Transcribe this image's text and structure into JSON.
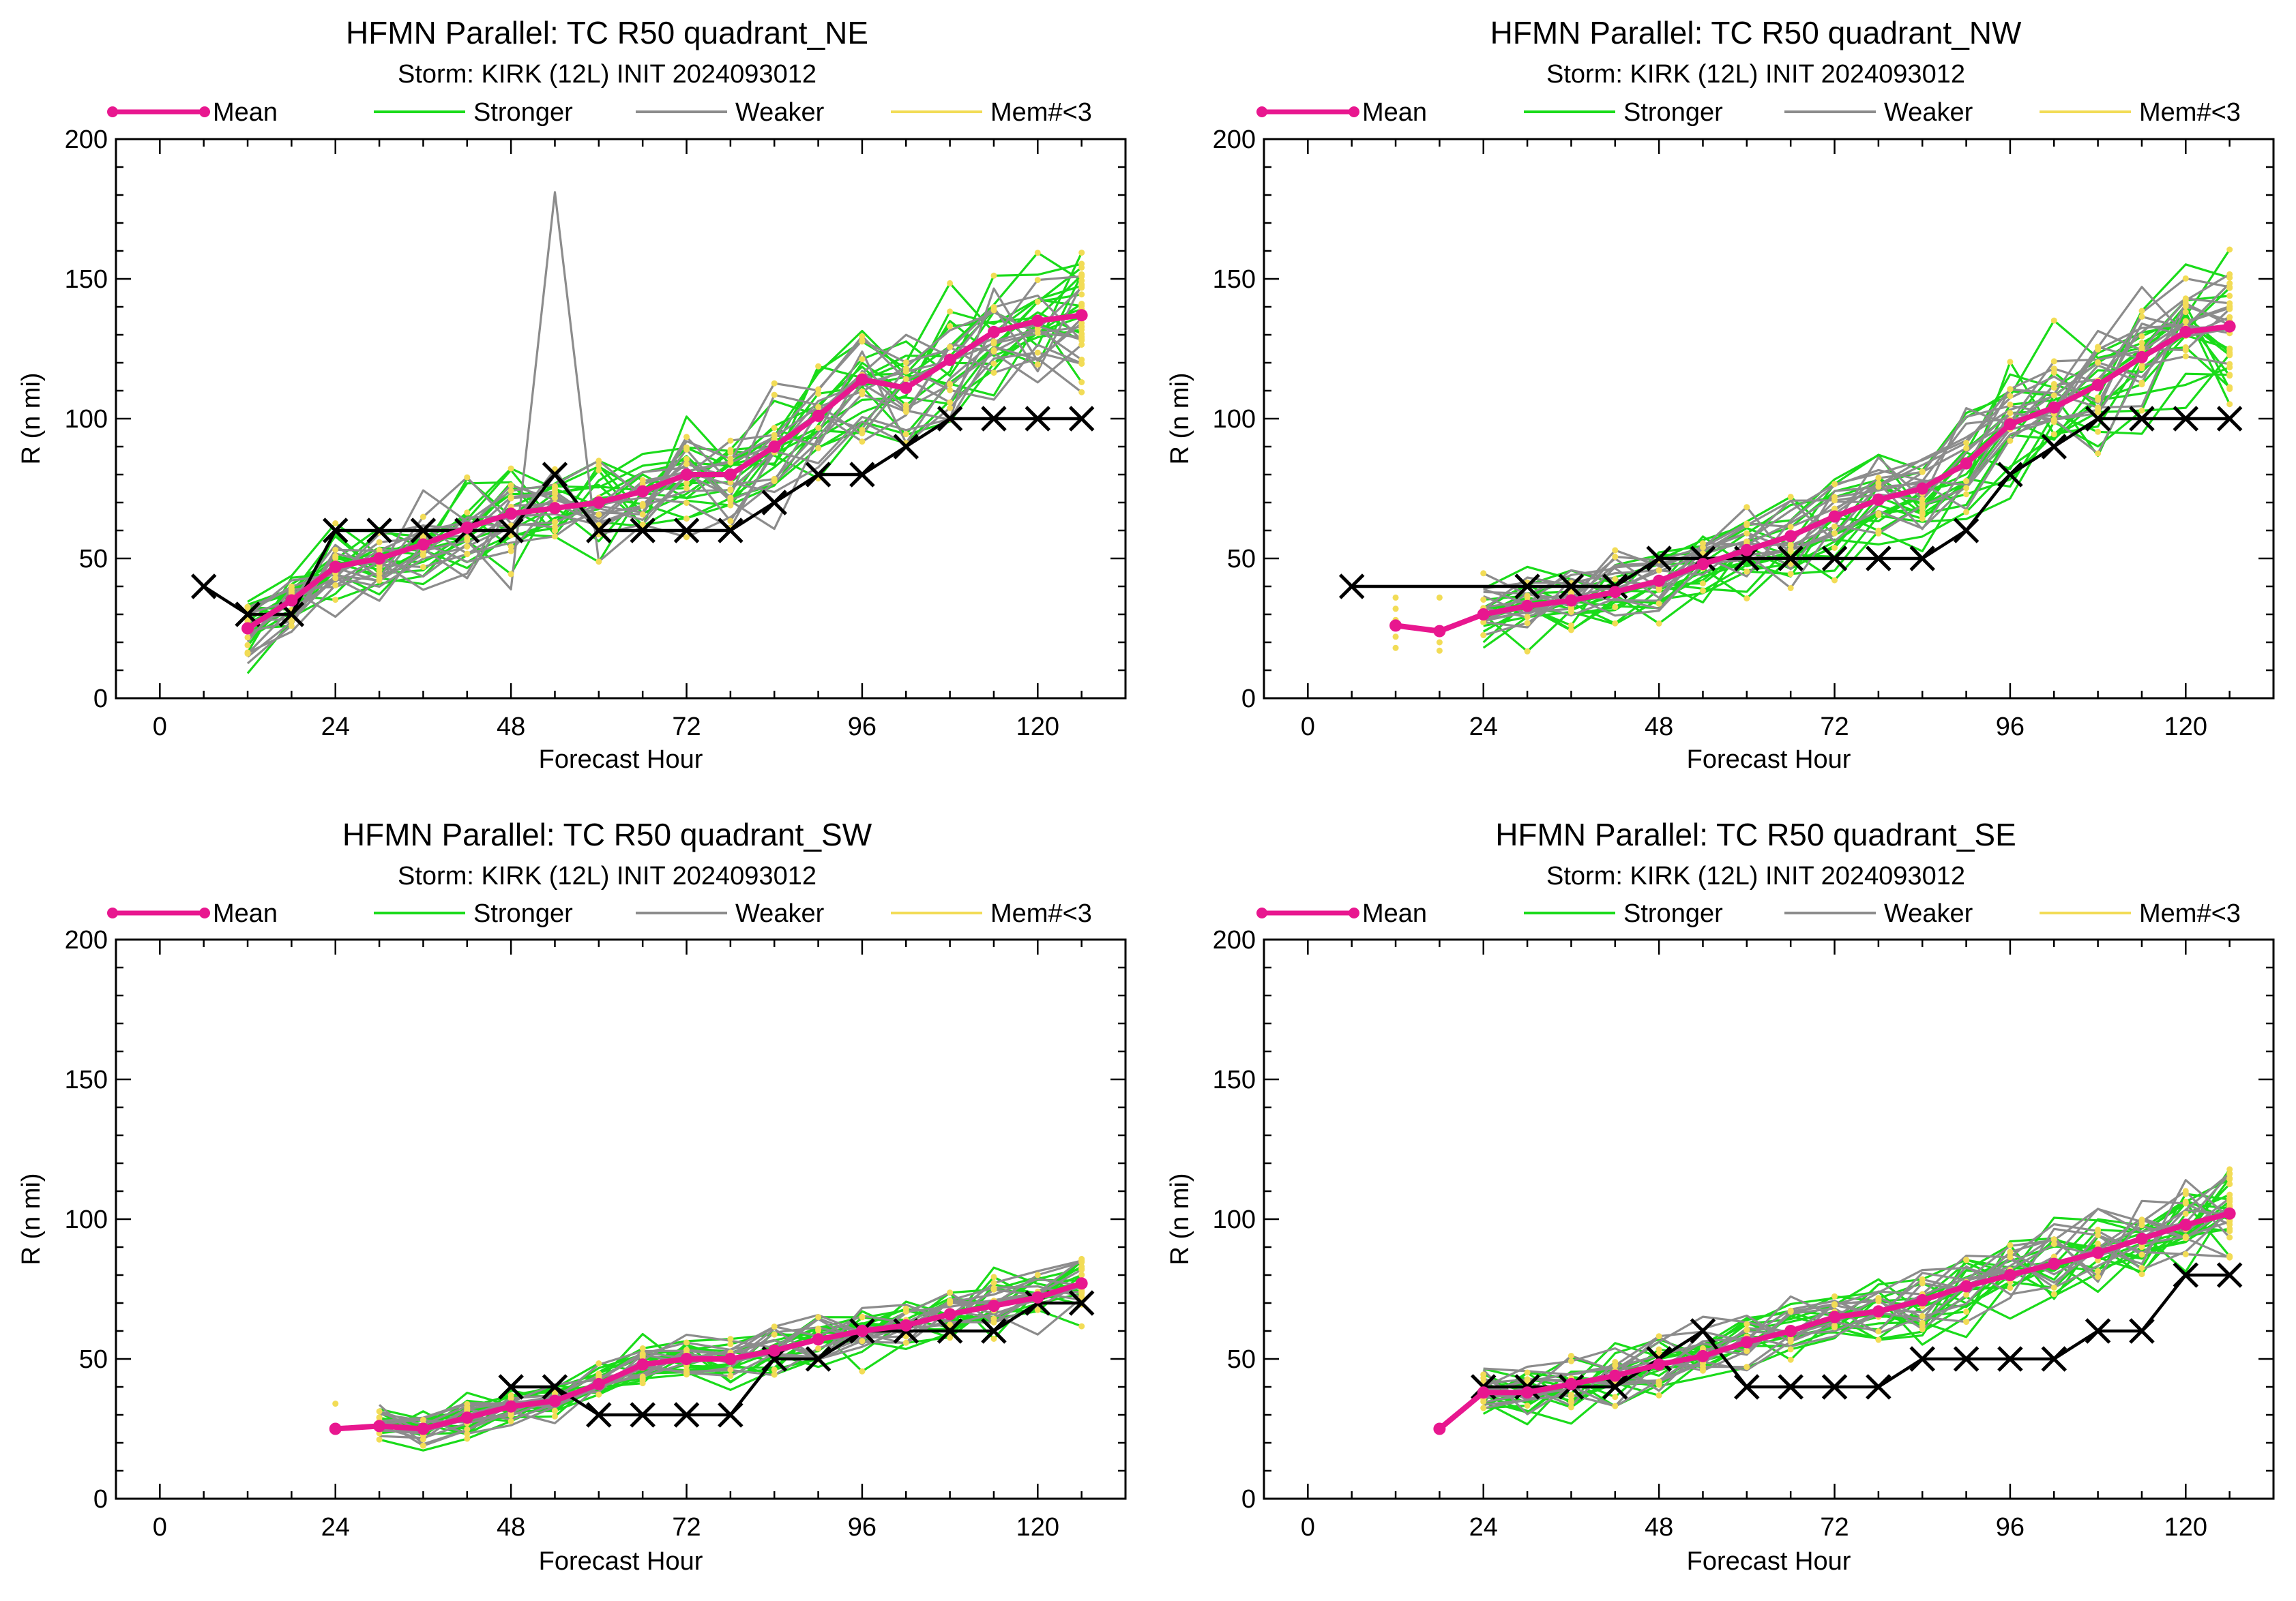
{
  "figure": {
    "background": "#ffffff"
  },
  "colors": {
    "mean": "#e8178f",
    "stronger": "#1adb1a",
    "weaker": "#8c8c8c",
    "mem_lt3": "#f2dc56",
    "best_track": "#000000"
  },
  "legend": {
    "mean": "Mean",
    "stronger": "Stronger",
    "weaker": "Weaker",
    "mem_lt3": "Mem#<3"
  },
  "chart_data": [
    {
      "type": "line",
      "position": "top-left",
      "title": "HFMN Parallel: TC  R50 quadrant_NE",
      "subtitle": "Storm: KIRK (12L) INIT 2024093012",
      "xlabel": "Forecast Hour",
      "ylabel": "R (n mi)",
      "xlim": [
        -6,
        132
      ],
      "ylim": [
        0,
        200
      ],
      "xticks": [
        0,
        24,
        48,
        72,
        96,
        120
      ],
      "yticks": [
        0,
        50,
        100,
        150,
        200
      ],
      "x_minor_step": 6,
      "y_minor_step": 10,
      "mean": {
        "x": [
          12,
          18,
          24,
          30,
          36,
          42,
          48,
          54,
          60,
          66,
          72,
          78,
          84,
          90,
          96,
          102,
          108,
          114,
          120,
          126
        ],
        "y": [
          25,
          35,
          47,
          50,
          55,
          61,
          66,
          68,
          70,
          74,
          80,
          80,
          90,
          101,
          114,
          111,
          121,
          131,
          135,
          137
        ]
      },
      "best_track": {
        "x": [
          6,
          12,
          18,
          24,
          30,
          36,
          42,
          48,
          54,
          60,
          66,
          72,
          78,
          84,
          90,
          96,
          102,
          108,
          114,
          120,
          126
        ],
        "y": [
          40,
          30,
          30,
          60,
          60,
          60,
          60,
          60,
          80,
          60,
          60,
          60,
          60,
          70,
          80,
          80,
          90,
          100,
          100,
          100,
          100
        ]
      },
      "members": {
        "x_start": 12,
        "x_end": 126,
        "n_stronger": 16,
        "n_weaker": 14,
        "spread": 16,
        "spike": {
          "x": 54,
          "y": 181
        }
      }
    },
    {
      "type": "line",
      "position": "top-right",
      "title": "HFMN Parallel: TC  R50 quadrant_NW",
      "subtitle": "Storm: KIRK (12L) INIT 2024093012",
      "xlabel": "Forecast Hour",
      "ylabel": "R (n mi)",
      "xlim": [
        -6,
        132
      ],
      "ylim": [
        0,
        200
      ],
      "xticks": [
        0,
        24,
        48,
        72,
        96,
        120
      ],
      "yticks": [
        0,
        50,
        100,
        150,
        200
      ],
      "x_minor_step": 6,
      "y_minor_step": 10,
      "mean": {
        "x": [
          12,
          18,
          24,
          30,
          36,
          42,
          48,
          54,
          60,
          66,
          72,
          78,
          84,
          90,
          96,
          102,
          108,
          114,
          120,
          126
        ],
        "y": [
          26,
          24,
          30,
          33,
          35,
          38,
          42,
          48,
          53,
          58,
          65,
          71,
          75,
          84,
          98,
          104,
          112,
          122,
          131,
          133
        ]
      },
      "best_track": {
        "x": [
          6,
          30,
          36,
          42,
          48,
          54,
          60,
          66,
          72,
          78,
          84,
          90,
          96,
          102,
          108,
          114,
          120,
          126
        ],
        "y": [
          40,
          40,
          40,
          40,
          50,
          50,
          50,
          50,
          50,
          50,
          50,
          60,
          80,
          90,
          100,
          100,
          100,
          100
        ]
      },
      "members": {
        "x_start": 24,
        "x_end": 126,
        "n_stronger": 16,
        "n_weaker": 14,
        "spread": 14,
        "stray_points": [
          [
            12,
            36
          ],
          [
            12,
            32
          ],
          [
            12,
            28
          ],
          [
            12,
            22
          ],
          [
            12,
            18
          ],
          [
            18,
            36
          ],
          [
            18,
            20
          ],
          [
            18,
            17
          ]
        ]
      }
    },
    {
      "type": "line",
      "position": "bottom-left",
      "title": "HFMN Parallel: TC  R50 quadrant_SW",
      "subtitle": "Storm: KIRK (12L) INIT 2024093012",
      "xlabel": "Forecast Hour",
      "ylabel": "R (n mi)",
      "xlim": [
        -6,
        132
      ],
      "ylim": [
        0,
        200
      ],
      "xticks": [
        0,
        24,
        48,
        72,
        96,
        120
      ],
      "yticks": [
        0,
        50,
        100,
        150,
        200
      ],
      "x_minor_step": 6,
      "y_minor_step": 10,
      "mean": {
        "x": [
          24,
          30,
          36,
          42,
          48,
          54,
          60,
          66,
          72,
          78,
          84,
          90,
          96,
          102,
          108,
          114,
          120,
          126
        ],
        "y": [
          25,
          26,
          25,
          29,
          33,
          35,
          41,
          48,
          50,
          50,
          53,
          57,
          60,
          62,
          66,
          69,
          72,
          77
        ]
      },
      "best_track": {
        "x": [
          48,
          54,
          60,
          66,
          72,
          78,
          84,
          90,
          96,
          102,
          108,
          114,
          120,
          126
        ],
        "y": [
          40,
          40,
          30,
          30,
          30,
          30,
          50,
          50,
          60,
          60,
          60,
          60,
          70,
          70
        ]
      },
      "members": {
        "x_start": 30,
        "x_end": 126,
        "n_stronger": 16,
        "n_weaker": 12,
        "spread": 8,
        "stray_points": [
          [
            24,
            34
          ]
        ]
      }
    },
    {
      "type": "line",
      "position": "bottom-right",
      "title": "HFMN Parallel: TC  R50 quadrant_SE",
      "subtitle": "Storm: KIRK (12L) INIT 2024093012",
      "xlabel": "Forecast Hour",
      "ylabel": "R (n mi)",
      "xlim": [
        -6,
        132
      ],
      "ylim": [
        0,
        200
      ],
      "xticks": [
        0,
        24,
        48,
        72,
        96,
        120
      ],
      "yticks": [
        0,
        50,
        100,
        150,
        200
      ],
      "x_minor_step": 6,
      "y_minor_step": 10,
      "mean": {
        "x": [
          18,
          24,
          30,
          36,
          42,
          48,
          54,
          60,
          66,
          72,
          78,
          84,
          90,
          96,
          102,
          108,
          114,
          120,
          126
        ],
        "y": [
          25,
          38,
          38,
          41,
          44,
          48,
          51,
          56,
          60,
          65,
          67,
          71,
          76,
          80,
          84,
          88,
          93,
          98,
          102
        ]
      },
      "best_track": {
        "x": [
          24,
          30,
          36,
          42,
          48,
          54,
          60,
          66,
          72,
          78,
          84,
          90,
          96,
          102,
          108,
          114,
          120,
          126
        ],
        "y": [
          40,
          40,
          40,
          40,
          50,
          60,
          40,
          40,
          40,
          40,
          50,
          50,
          50,
          50,
          60,
          60,
          80,
          80
        ]
      },
      "members": {
        "x_start": 24,
        "x_end": 126,
        "n_stronger": 16,
        "n_weaker": 12,
        "spread": 11
      }
    }
  ]
}
